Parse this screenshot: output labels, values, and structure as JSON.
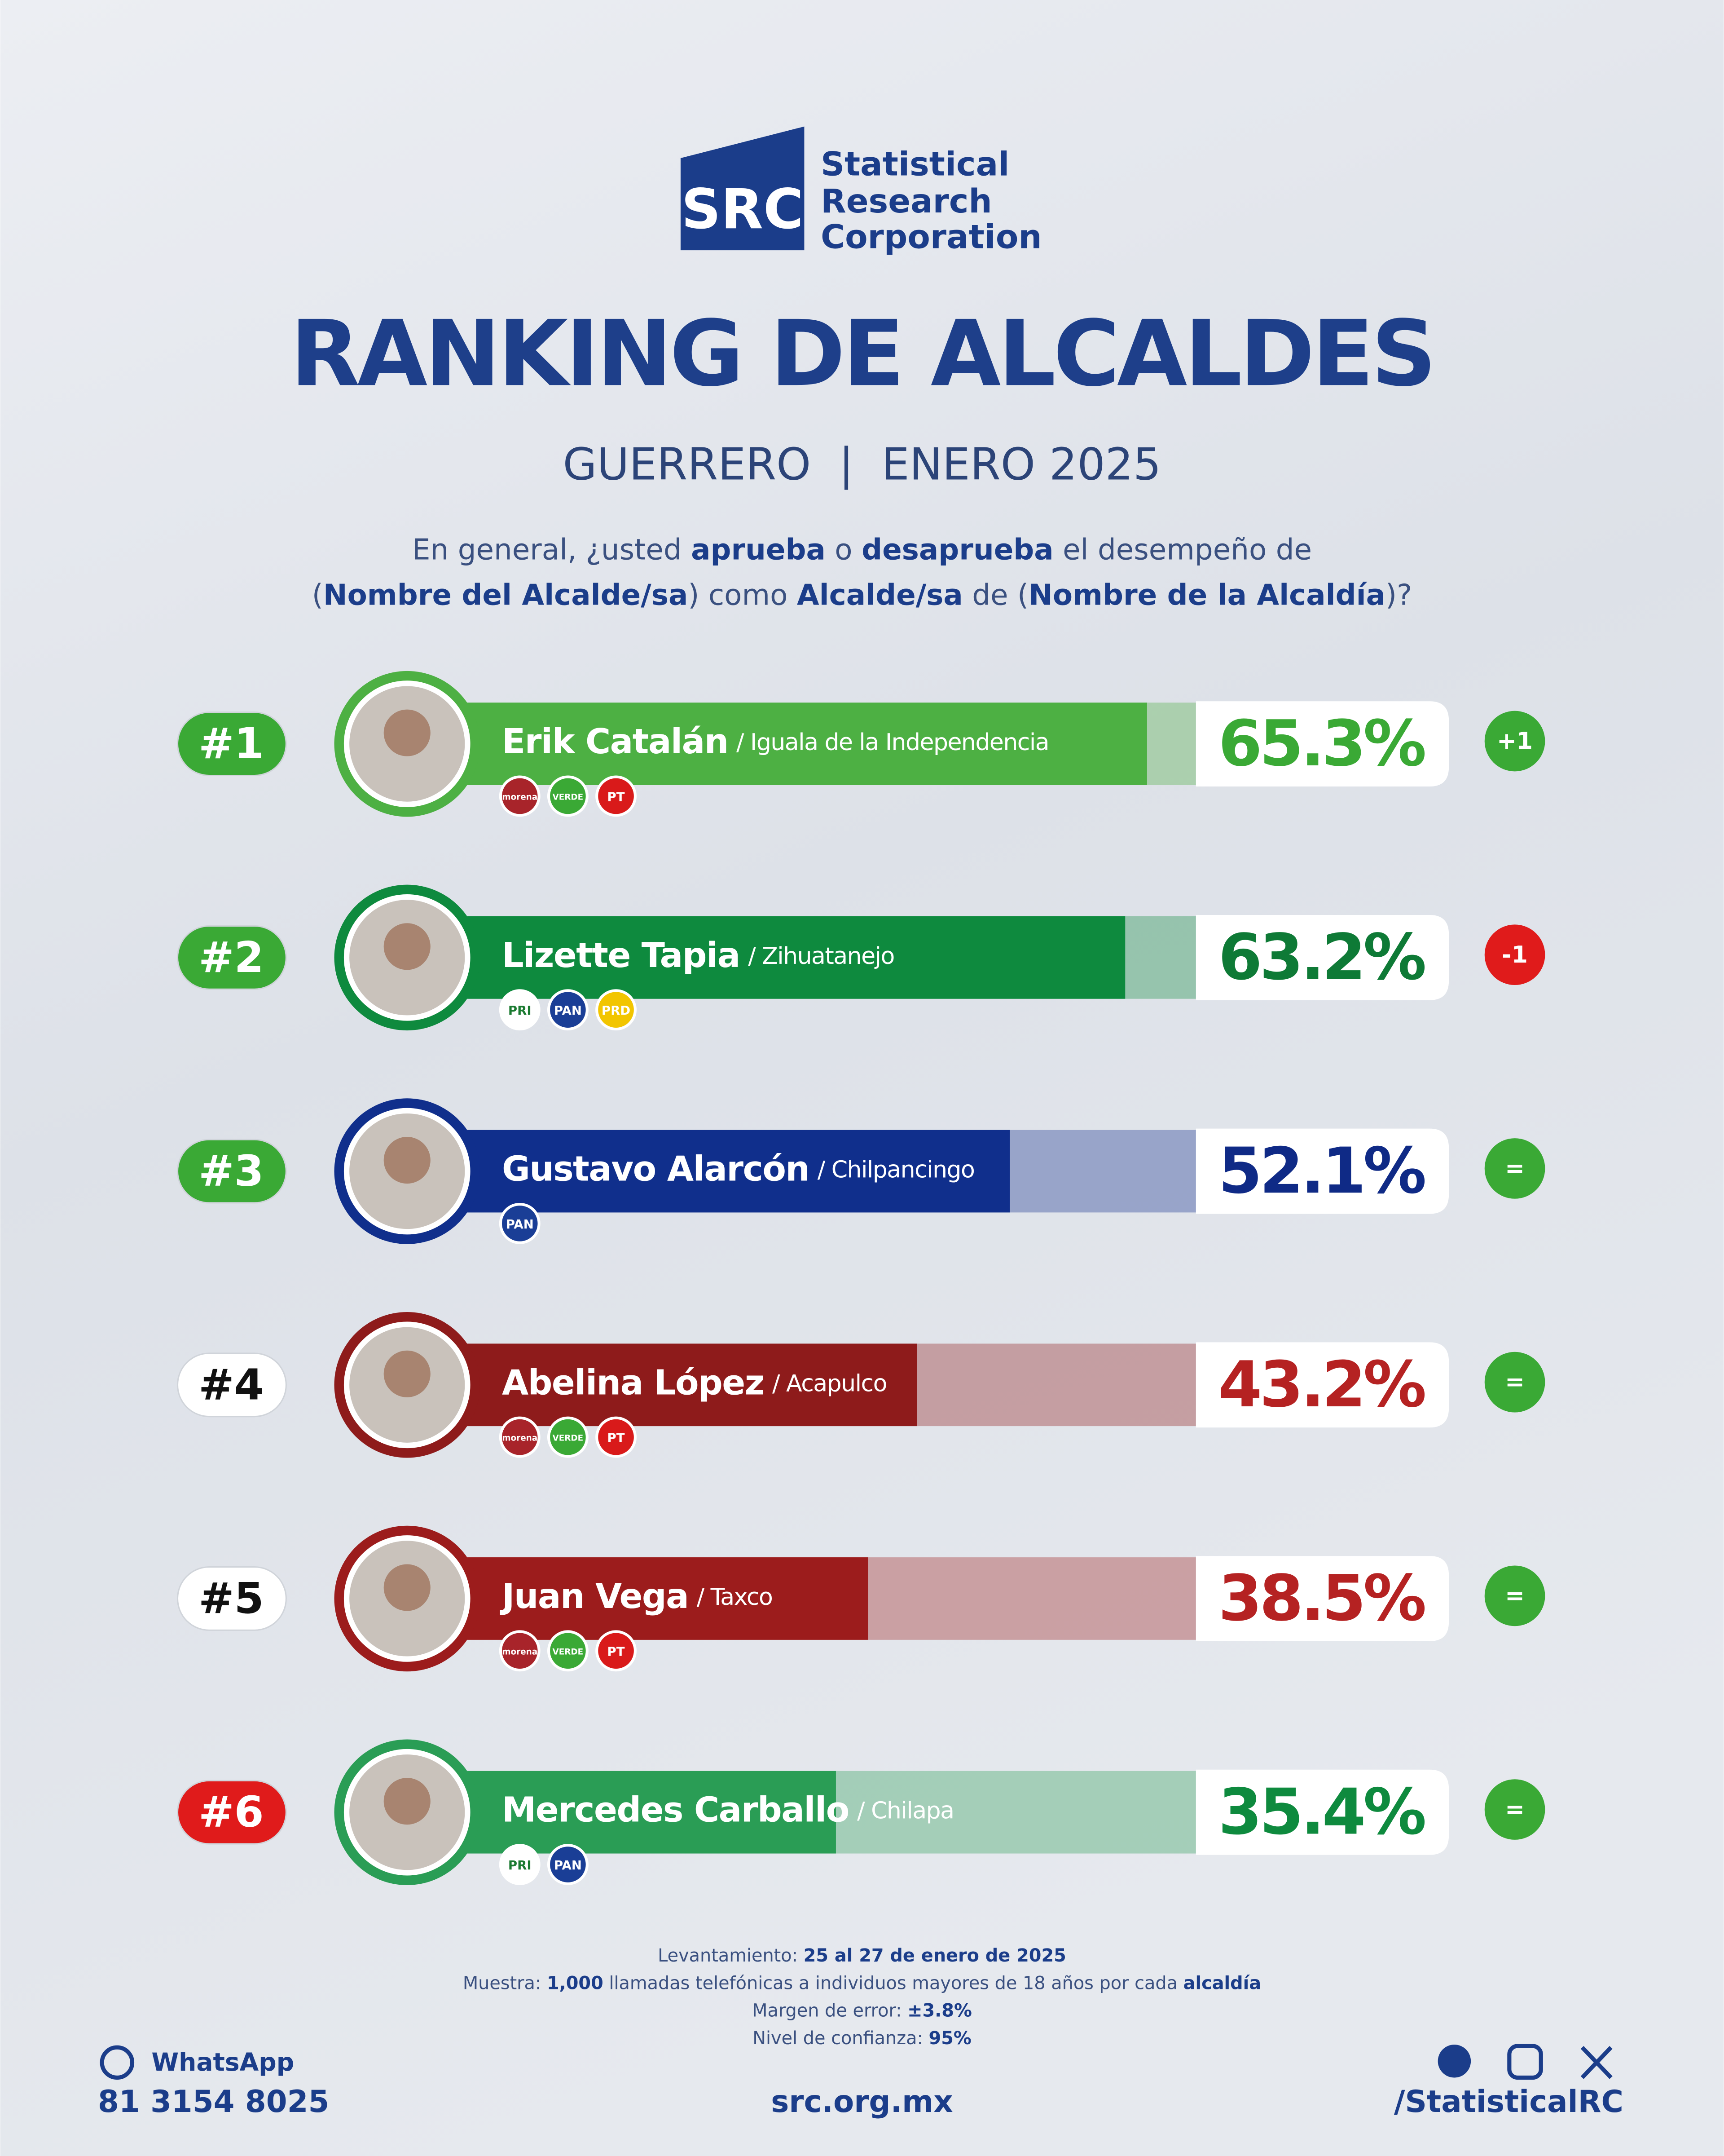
{
  "header": {
    "logo_mark": "SRC",
    "logo_text": [
      "Statistical",
      "Research",
      "Corporation"
    ]
  },
  "chart_data": {
    "type": "bar",
    "title": "RANKING DE ALCALDES",
    "subtitle": "GUERRERO  |  ENERO 2025",
    "question": [
      [
        {
          "text": "En general, ¿usted ",
          "bold": false
        },
        {
          "text": "aprueba",
          "bold": true
        },
        {
          "text": " o ",
          "bold": false
        },
        {
          "text": "desaprueba",
          "bold": true
        },
        {
          "text": " el desempeño de",
          "bold": false
        }
      ],
      [
        {
          "text": "(",
          "bold": false
        },
        {
          "text": "Nombre del Alcalde/sa",
          "bold": true
        },
        {
          "text": ") como ",
          "bold": false
        },
        {
          "text": "Alcalde/sa",
          "bold": true
        },
        {
          "text": " de (",
          "bold": false
        },
        {
          "text": "Nombre de la Alcaldía",
          "bold": true
        },
        {
          "text": ")?",
          "bold": false
        }
      ]
    ],
    "categories": [
      "Erik Catalán",
      "Lizette Tapia",
      "Gustavo Alarcón",
      "Abelina López",
      "Juan Vega",
      "Mercedes Carballo"
    ],
    "places": [
      "/ Iguala de la Independencia",
      "/ Zihuatanejo",
      "/ Chilpancingo",
      "/ Acapulco",
      "/ Taxco",
      "/ Chilapa"
    ],
    "values": [
      65.3,
      63.2,
      52.1,
      43.2,
      38.5,
      35.4
    ],
    "value_labels": [
      "65.3%",
      "63.2%",
      "52.1%",
      "43.2%",
      "38.5%",
      "35.4%"
    ],
    "colors": [
      "#4db043",
      "#0e8a3e",
      "#102f8c",
      "#8e1b1b",
      "#9c1c1c",
      "#2a9d55"
    ],
    "value_text_colors": [
      "#3aa935",
      "#0e7a36",
      "#0f2a86",
      "#b52222",
      "#b52222",
      "#0e8a3e"
    ],
    "ranks": [
      "#1",
      "#2",
      "#3",
      "#4",
      "#5",
      "#6"
    ],
    "rank_colors": [
      "#3aa935",
      "#3aa935",
      "#3aa935",
      "#ffffff",
      "#ffffff",
      "#e01b1b"
    ],
    "rank_text_colors": [
      "#ffffff",
      "#ffffff",
      "#ffffff",
      "#111111",
      "#111111",
      "#ffffff"
    ],
    "changes": [
      "+1",
      "-1",
      "=",
      "=",
      "=",
      "="
    ],
    "change_colors": [
      "#3aa935",
      "#e01b1b",
      "#3aa935",
      "#3aa935",
      "#3aa935",
      "#3aa935"
    ],
    "parties": [
      [
        {
          "name": "morena",
          "color": "#a8242a"
        },
        {
          "name": "VERDE",
          "color": "#3aa935"
        },
        {
          "name": "PT",
          "color": "#d91a1a"
        }
      ],
      [
        {
          "name": "PRI",
          "color": "#ffffff"
        },
        {
          "name": "PAN",
          "color": "#1a3e96"
        },
        {
          "name": "PRD",
          "color": "#f2c500"
        }
      ],
      [
        {
          "name": "PAN",
          "color": "#1a3e96"
        }
      ],
      [
        {
          "name": "morena",
          "color": "#a8242a"
        },
        {
          "name": "VERDE",
          "color": "#3aa935"
        },
        {
          "name": "PT",
          "color": "#d91a1a"
        }
      ],
      [
        {
          "name": "morena",
          "color": "#a8242a"
        },
        {
          "name": "VERDE",
          "color": "#3aa935"
        },
        {
          "name": "PT",
          "color": "#d91a1a"
        }
      ],
      [
        {
          "name": "PRI",
          "color": "#ffffff"
        },
        {
          "name": "PAN",
          "color": "#1a3e96"
        }
      ]
    ],
    "xlim": [
      0,
      70
    ]
  },
  "footer": {
    "method": [
      [
        {
          "text": "Levantamiento: ",
          "bold": false
        },
        {
          "text": "25 al 27 de enero de 2025",
          "bold": true
        }
      ],
      [
        {
          "text": "Muestra: ",
          "bold": false
        },
        {
          "text": "1,000",
          "bold": true
        },
        {
          "text": " llamadas telefónicas a individuos mayores de 18 años por cada ",
          "bold": false
        },
        {
          "text": "alcaldía",
          "bold": true
        }
      ],
      [
        {
          "text": "Margen de error: ",
          "bold": false
        },
        {
          "text": "±3.8%",
          "bold": true
        }
      ],
      [
        {
          "text": "Nivel de confianza: ",
          "bold": false
        },
        {
          "text": "95%",
          "bold": true
        }
      ]
    ],
    "whatsapp_label": "WhatsApp",
    "phone": "81 3154 8025",
    "website": "src.org.mx",
    "social": "/StatisticalRC"
  }
}
